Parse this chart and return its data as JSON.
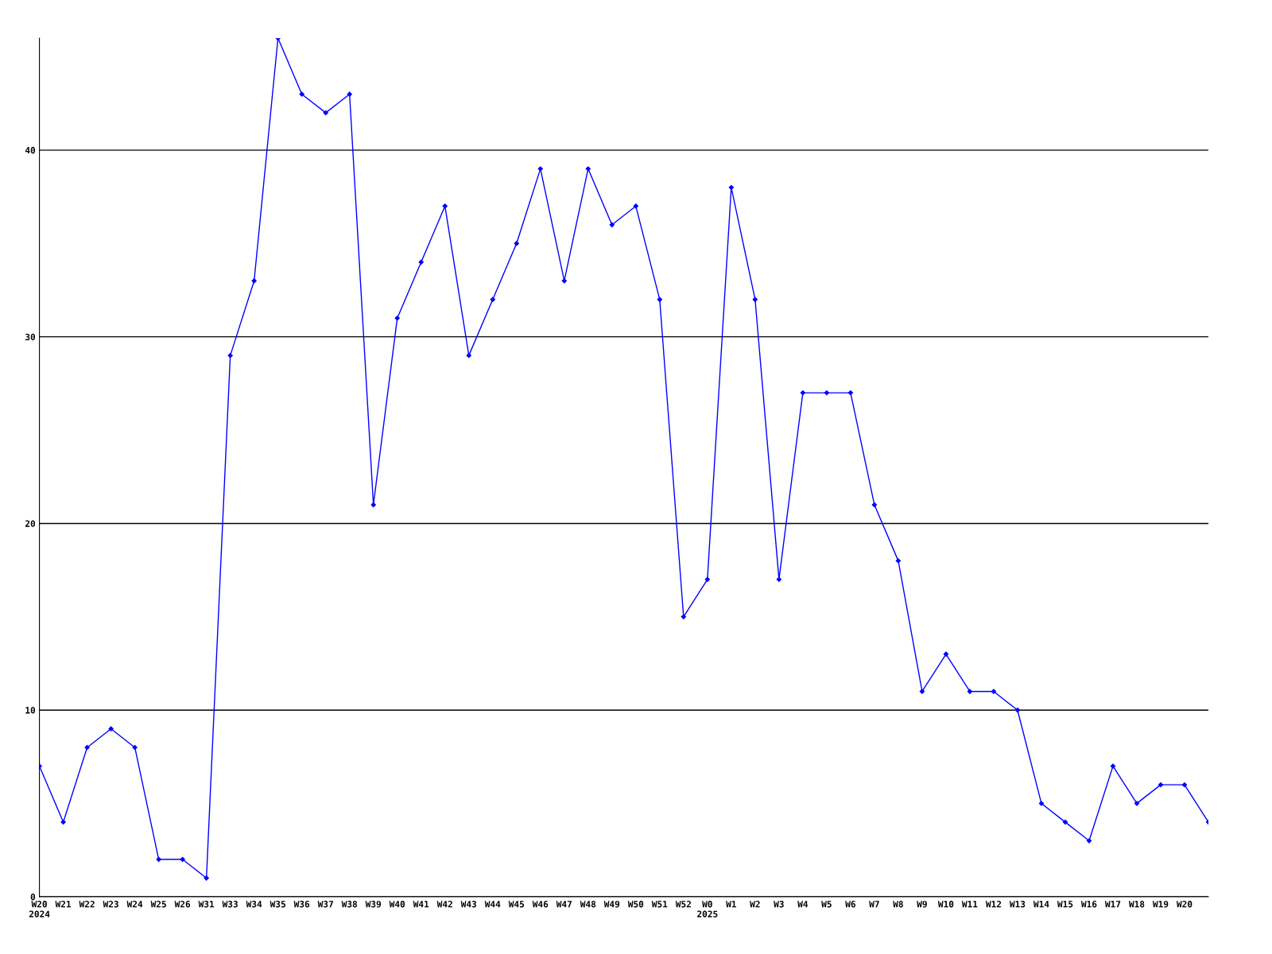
{
  "chart_data": {
    "type": "line",
    "categories": [
      "W20\n2024",
      "W21",
      "W22",
      "W23",
      "W24",
      "W25",
      "W26",
      "W31",
      "W33",
      "W34",
      "W35",
      "W36",
      "W37",
      "W38",
      "W39",
      "W40",
      "W41",
      "W42",
      "W43",
      "W44",
      "W45",
      "W46",
      "W47",
      "W48",
      "W49",
      "W50",
      "W51",
      "W52",
      "W0\n2025",
      "W1",
      "W2",
      "W3",
      "W4",
      "W5",
      "W6",
      "W7",
      "W8",
      "W9",
      "W10",
      "W11",
      "W12",
      "W13",
      "W14",
      "W15",
      "W16",
      "W17",
      "W18",
      "W19",
      "W20",
      null
    ],
    "series": [
      {
        "color": "#0000ff",
        "values": [
          7,
          4,
          8,
          9,
          8,
          2,
          2,
          1,
          29,
          33,
          46,
          43,
          42,
          43,
          21,
          31,
          34,
          37,
          29,
          32,
          35,
          39,
          33,
          39,
          36,
          37,
          32,
          15,
          17,
          38,
          32,
          17,
          27,
          27,
          27,
          21,
          18,
          11,
          13,
          11,
          11,
          10,
          5,
          4,
          3,
          7,
          5,
          6,
          6,
          4
        ]
      }
    ],
    "ylim": [
      0,
      46
    ],
    "yticks": [
      0,
      10,
      20,
      30,
      40
    ],
    "grid": "y",
    "marker": "diamond",
    "line_style": "solid",
    "legend": false
  }
}
